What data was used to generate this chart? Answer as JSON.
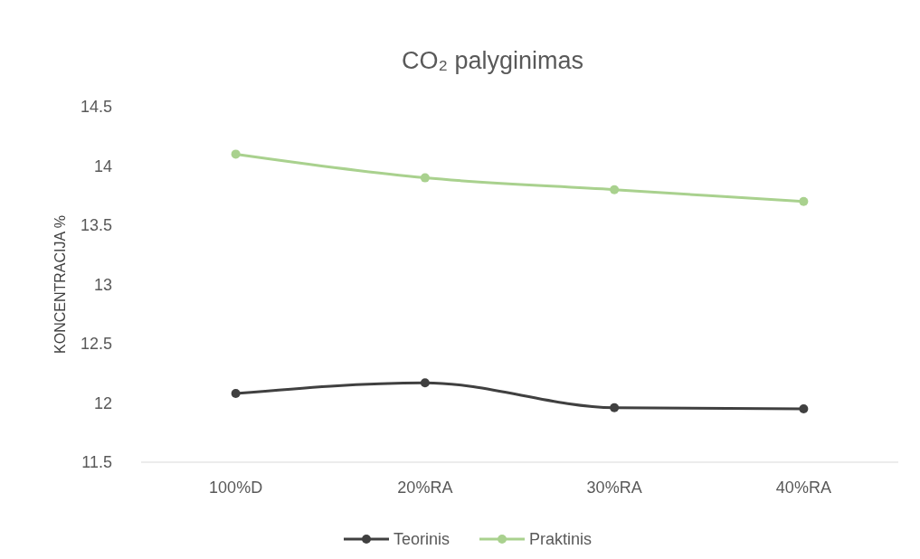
{
  "chart_data": {
    "type": "line",
    "title": "CO₂ palyginimas",
    "ylabel": "KONCENTRACIJA %",
    "categories": [
      "100%D",
      "20%RA",
      "30%RA",
      "40%RA"
    ],
    "series": [
      {
        "name": "Teorinis",
        "color": "#404040",
        "values": [
          12.08,
          12.17,
          11.96,
          11.95
        ]
      },
      {
        "name": "Praktinis",
        "color": "#a9d18e",
        "values": [
          14.1,
          13.9,
          13.8,
          13.7
        ]
      }
    ],
    "ylim": [
      11.5,
      14.5
    ],
    "yticks": [
      11.5,
      12,
      12.5,
      13,
      13.5,
      14,
      14.5
    ],
    "grid": false,
    "legend": "bottom",
    "marker": "circle",
    "line_style": "solid"
  }
}
